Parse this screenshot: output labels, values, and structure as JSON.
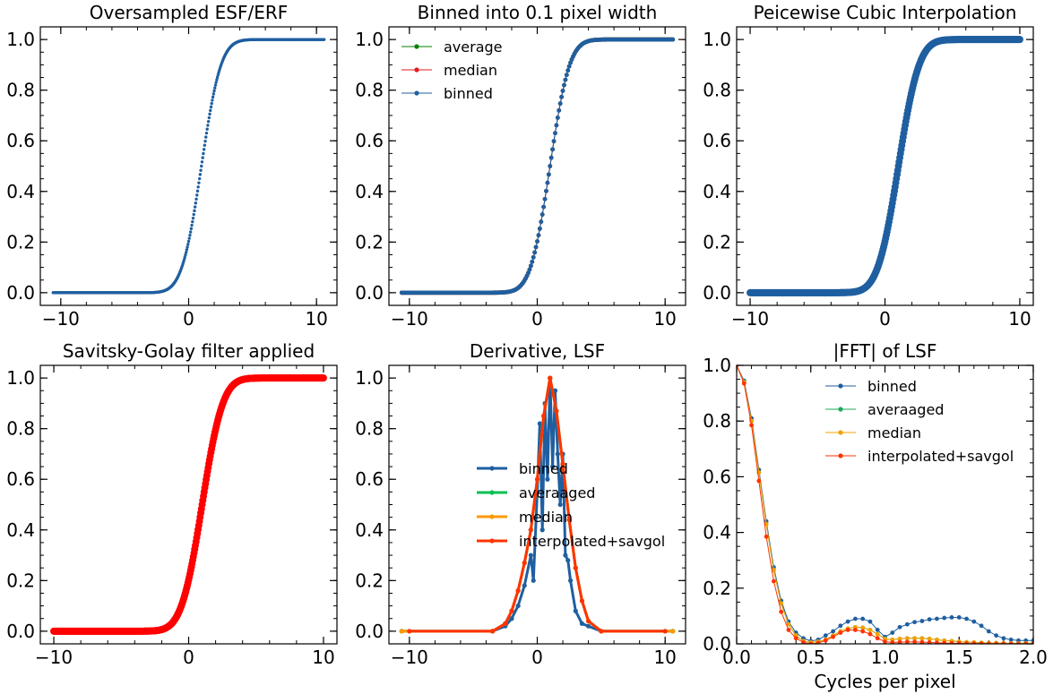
{
  "chart_data": [
    {
      "type": "scatter",
      "title": "Oversampled ESF/ERF",
      "xlim": [
        -11.6,
        11.6
      ],
      "ylim": [
        -0.05,
        1.05
      ],
      "xticks": [
        -10,
        0,
        10
      ],
      "xtick_labels": [
        "−10",
        "0",
        "10"
      ],
      "yticks": [
        0.0,
        0.2,
        0.4,
        0.6,
        0.8,
        1.0
      ],
      "ytick_labels": [
        "0.0",
        "0.2",
        "0.4",
        "0.6",
        "0.8",
        "1.0"
      ],
      "xlabel": "",
      "ylabel": "",
      "legend": null,
      "series": [
        {
          "color": "#1f5fa0",
          "style": "dense-dots",
          "curve": "esf",
          "x_range": [
            -10.6,
            10.6
          ],
          "x": [
            -10.6,
            -4,
            -2.5,
            -2,
            -1.5,
            -1,
            -0.5,
            0,
            0.5,
            1,
            1.5,
            2,
            2.5,
            3,
            3.5,
            4,
            6,
            10.6
          ],
          "y": [
            0.0,
            0.0,
            0.005,
            0.02,
            0.045,
            0.09,
            0.18,
            0.32,
            0.48,
            0.64,
            0.78,
            0.89,
            0.95,
            0.985,
            0.995,
            1.0,
            1.0,
            1.0
          ]
        }
      ]
    },
    {
      "type": "line",
      "title": "Binned into 0.1 pixel width",
      "xlim": [
        -11.6,
        11.6
      ],
      "ylim": [
        -0.05,
        1.05
      ],
      "xticks": [
        -10,
        0,
        10
      ],
      "xtick_labels": [
        "−10",
        "0",
        "10"
      ],
      "yticks": [
        0.0,
        0.2,
        0.4,
        0.6,
        0.8,
        1.0
      ],
      "ytick_labels": [
        "0.0",
        "0.2",
        "0.4",
        "0.6",
        "0.8",
        "1.0"
      ],
      "xlabel": "",
      "ylabel": "",
      "legend": "top-left",
      "series": [
        {
          "name": "average",
          "color": "#008000",
          "curve": "esf",
          "x_range": [
            -10.6,
            10.6
          ]
        },
        {
          "name": "median",
          "color": "#e41a1c",
          "curve": "esf",
          "x_range": [
            -10.6,
            10.6
          ]
        },
        {
          "name": "binned",
          "color": "#1f5fa0",
          "curve": "esf",
          "x_range": [
            -10.6,
            10.6
          ]
        }
      ]
    },
    {
      "type": "scatter",
      "title": "Peicewise Cubic Interpolation",
      "xlim": [
        -11.0,
        11.0
      ],
      "ylim": [
        -0.05,
        1.05
      ],
      "xticks": [
        -10,
        0,
        10
      ],
      "xtick_labels": [
        "−10",
        "0",
        "10"
      ],
      "yticks": [
        0.0,
        0.2,
        0.4,
        0.6,
        0.8,
        1.0
      ],
      "ytick_labels": [
        "0.0",
        "0.2",
        "0.4",
        "0.6",
        "0.8",
        "1.0"
      ],
      "xlabel": "",
      "ylabel": "",
      "legend": null,
      "series": [
        {
          "color": "#1f5fa0",
          "style": "thick-dots",
          "curve": "esf",
          "x_range": [
            -10,
            10
          ]
        }
      ]
    },
    {
      "type": "scatter",
      "title": "Savitsky-Golay filter applied",
      "xlim": [
        -11.0,
        11.0
      ],
      "ylim": [
        -0.05,
        1.05
      ],
      "xticks": [
        -10,
        0,
        10
      ],
      "xtick_labels": [
        "−10",
        "0",
        "10"
      ],
      "yticks": [
        0.0,
        0.2,
        0.4,
        0.6,
        0.8,
        1.0
      ],
      "ytick_labels": [
        "0.0",
        "0.2",
        "0.4",
        "0.6",
        "0.8",
        "1.0"
      ],
      "xlabel": "",
      "ylabel": "",
      "legend": null,
      "series": [
        {
          "color": "#ff0000",
          "style": "thick-dots",
          "curve": "esf",
          "x_range": [
            -10,
            10
          ]
        }
      ]
    },
    {
      "type": "line",
      "title": "Derivative, LSF",
      "xlim": [
        -11.6,
        11.6
      ],
      "ylim": [
        -0.05,
        1.05
      ],
      "xticks": [
        -10,
        0,
        10
      ],
      "xtick_labels": [
        "−10",
        "0",
        "10"
      ],
      "yticks": [
        0.0,
        0.2,
        0.4,
        0.6,
        0.8,
        1.0
      ],
      "ytick_labels": [
        "0.0",
        "0.2",
        "0.4",
        "0.6",
        "0.8",
        "1.0"
      ],
      "xlabel": "",
      "ylabel": "",
      "legend": "center-right",
      "series": [
        {
          "name": "binned",
          "color": "#1f5fa0",
          "x": [
            -10.6,
            -3.5,
            -2.5,
            -2.0,
            -1.5,
            -1.0,
            -0.5,
            -0.3,
            0.0,
            0.2,
            0.4,
            0.6,
            0.8,
            1.0,
            1.2,
            1.4,
            1.6,
            1.8,
            2.0,
            2.2,
            2.4,
            2.6,
            3.0,
            3.5,
            4.0,
            5.0,
            10.6
          ],
          "y": [
            0.0,
            0.0,
            0.02,
            0.05,
            0.1,
            0.18,
            0.3,
            0.2,
            0.55,
            0.82,
            0.4,
            0.9,
            0.6,
            1.0,
            0.65,
            0.95,
            0.7,
            0.5,
            0.7,
            0.3,
            0.28,
            0.2,
            0.08,
            0.03,
            0.02,
            0.0,
            0.0
          ]
        },
        {
          "name": "averaaged",
          "color": "#00c050",
          "x": [
            -10.6,
            -3.5,
            -2.5,
            -2.0,
            -1.5,
            -1.0,
            -0.5,
            0.0,
            0.5,
            1.0,
            1.5,
            2.0,
            2.5,
            3.0,
            3.5,
            4.0,
            5.0,
            10.6
          ],
          "y": [
            0.0,
            0.0,
            0.03,
            0.08,
            0.16,
            0.27,
            0.4,
            0.6,
            0.85,
            1.0,
            0.87,
            0.66,
            0.44,
            0.25,
            0.12,
            0.04,
            0.0,
            0.0
          ]
        },
        {
          "name": "median",
          "color": "#ff9900",
          "x": [
            -10.6,
            -3.5,
            -2.5,
            -2.0,
            -1.5,
            -1.0,
            -0.5,
            0.0,
            0.5,
            1.0,
            1.5,
            2.0,
            2.5,
            3.0,
            3.5,
            4.0,
            5.0,
            10.6
          ],
          "y": [
            0.0,
            0.0,
            0.03,
            0.08,
            0.16,
            0.27,
            0.4,
            0.6,
            0.85,
            1.0,
            0.87,
            0.66,
            0.44,
            0.25,
            0.12,
            0.04,
            0.0,
            0.0
          ]
        },
        {
          "name": "interpolated+savgol",
          "color": "#ff3300",
          "x": [
            -10.0,
            -3.5,
            -2.5,
            -2.0,
            -1.5,
            -1.0,
            -0.5,
            0.0,
            0.5,
            1.0,
            1.5,
            2.0,
            2.5,
            3.0,
            3.5,
            4.0,
            5.0,
            10.0
          ],
          "y": [
            0.0,
            0.0,
            0.03,
            0.08,
            0.16,
            0.27,
            0.4,
            0.6,
            0.85,
            1.0,
            0.87,
            0.66,
            0.44,
            0.25,
            0.12,
            0.04,
            0.0,
            0.0
          ]
        }
      ]
    },
    {
      "type": "line",
      "title": "|FFT| of LSF",
      "xlim": [
        0.0,
        2.0
      ],
      "ylim": [
        0.0,
        1.0
      ],
      "xticks": [
        0.0,
        0.5,
        1.0,
        1.5,
        2.0
      ],
      "xtick_labels": [
        "0.0",
        "0.5",
        "1.0",
        "1.5",
        "2.0"
      ],
      "yticks": [
        0.0,
        0.2,
        0.4,
        0.6,
        0.8,
        1.0
      ],
      "ytick_labels": [
        "0.0",
        "0.2",
        "0.4",
        "0.6",
        "0.8",
        "1.0"
      ],
      "xlabel": "Cycles per pixel",
      "ylabel": "",
      "legend": "top-right",
      "series": [
        {
          "name": "binned",
          "color": "#1f5fa0",
          "x": [
            0.0,
            0.05,
            0.1,
            0.15,
            0.2,
            0.25,
            0.3,
            0.35,
            0.4,
            0.45,
            0.5,
            0.55,
            0.6,
            0.65,
            0.7,
            0.75,
            0.8,
            0.85,
            0.9,
            0.95,
            1.0,
            1.05,
            1.1,
            1.15,
            1.2,
            1.25,
            1.3,
            1.35,
            1.4,
            1.45,
            1.5,
            1.55,
            1.6,
            1.65,
            1.7,
            1.75,
            1.8,
            1.85,
            1.9,
            1.95,
            2.0
          ],
          "y": [
            1.0,
            0.945,
            0.81,
            0.625,
            0.44,
            0.275,
            0.155,
            0.08,
            0.04,
            0.02,
            0.01,
            0.015,
            0.03,
            0.045,
            0.065,
            0.08,
            0.09,
            0.09,
            0.08,
            0.05,
            0.025,
            0.04,
            0.06,
            0.07,
            0.078,
            0.082,
            0.088,
            0.09,
            0.093,
            0.095,
            0.095,
            0.09,
            0.08,
            0.065,
            0.045,
            0.03,
            0.02,
            0.015,
            0.012,
            0.012,
            0.012
          ]
        },
        {
          "name": "averaaged",
          "color": "#1aaa55",
          "x": [
            0.0,
            0.05,
            0.1,
            0.15,
            0.2,
            0.25,
            0.3,
            0.35,
            0.4,
            0.45,
            0.5,
            0.55,
            0.6,
            0.65,
            0.7,
            0.75,
            0.8,
            0.85,
            0.9,
            0.95,
            1.0,
            1.05,
            1.1,
            1.15,
            1.2,
            1.25,
            1.3,
            1.35,
            1.4,
            1.45,
            1.5,
            1.55,
            1.6,
            1.65,
            1.7,
            1.75,
            1.8,
            1.85,
            1.9,
            1.95,
            2.0
          ],
          "y": [
            1.0,
            0.94,
            0.8,
            0.615,
            0.43,
            0.265,
            0.145,
            0.07,
            0.03,
            0.01,
            0.005,
            0.008,
            0.015,
            0.03,
            0.045,
            0.055,
            0.06,
            0.058,
            0.05,
            0.035,
            0.018,
            0.015,
            0.018,
            0.02,
            0.02,
            0.02,
            0.018,
            0.015,
            0.012,
            0.01,
            0.008,
            0.006,
            0.005,
            0.004,
            0.003,
            0.003,
            0.002,
            0.002,
            0.002,
            0.002,
            0.002
          ]
        },
        {
          "name": "median",
          "color": "#f5a000",
          "x": [
            0.0,
            0.05,
            0.1,
            0.15,
            0.2,
            0.25,
            0.3,
            0.35,
            0.4,
            0.45,
            0.5,
            0.55,
            0.6,
            0.65,
            0.7,
            0.75,
            0.8,
            0.85,
            0.9,
            0.95,
            1.0,
            1.05,
            1.1,
            1.15,
            1.2,
            1.25,
            1.3,
            1.35,
            1.4,
            1.45,
            1.5,
            1.55,
            1.6,
            1.65,
            1.7,
            1.75,
            1.8,
            1.85,
            1.9,
            1.95,
            2.0
          ],
          "y": [
            1.0,
            0.94,
            0.8,
            0.615,
            0.43,
            0.265,
            0.145,
            0.07,
            0.03,
            0.01,
            0.005,
            0.008,
            0.015,
            0.03,
            0.045,
            0.055,
            0.06,
            0.058,
            0.05,
            0.035,
            0.018,
            0.015,
            0.018,
            0.02,
            0.02,
            0.02,
            0.018,
            0.015,
            0.012,
            0.01,
            0.008,
            0.006,
            0.005,
            0.004,
            0.003,
            0.003,
            0.002,
            0.002,
            0.002,
            0.002,
            0.002
          ]
        },
        {
          "name": "interpolated+savgol",
          "color": "#ff3300",
          "x": [
            0.0,
            0.05,
            0.1,
            0.15,
            0.2,
            0.25,
            0.3,
            0.35,
            0.4,
            0.45,
            0.5,
            0.55,
            0.6,
            0.65,
            0.7,
            0.75,
            0.8,
            0.85,
            0.9,
            0.95,
            1.0,
            1.05,
            1.1,
            1.15,
            1.2,
            1.25,
            1.3,
            1.35,
            1.4,
            1.45,
            1.5,
            1.55,
            1.6,
            1.65,
            1.7,
            1.75,
            1.8,
            1.85,
            1.9,
            1.95,
            2.0
          ],
          "y": [
            1.0,
            0.935,
            0.785,
            0.585,
            0.385,
            0.225,
            0.115,
            0.05,
            0.02,
            0.005,
            0.0,
            0.003,
            0.012,
            0.025,
            0.04,
            0.05,
            0.05,
            0.045,
            0.035,
            0.02,
            0.008,
            0.005,
            0.006,
            0.007,
            0.007,
            0.006,
            0.005,
            0.004,
            0.003,
            0.002,
            0.002,
            0.001,
            0.001,
            0.001,
            0.0,
            0.0,
            0.0,
            0.0,
            0.0,
            0.0,
            0.0
          ]
        }
      ]
    }
  ]
}
